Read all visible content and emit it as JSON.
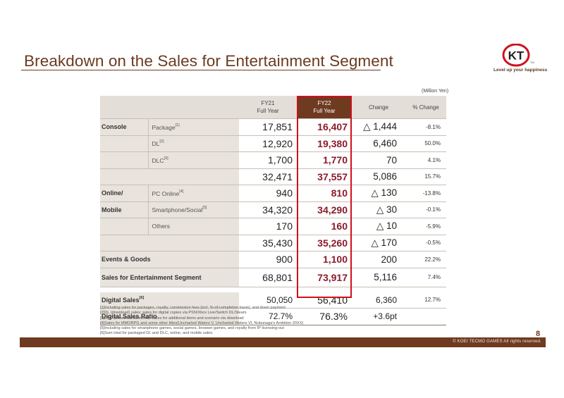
{
  "title": "Breakdown on the Sales for Entertainment Segment",
  "logo": {
    "mark": "KT",
    "tagline": "Level up your happiness",
    "tm": "TM"
  },
  "unit": "(Million Yen)",
  "colors": {
    "brand": "#6e3b21",
    "title": "#6b3a1e",
    "highlight_border": "#d0101c",
    "fy22_text": "#8a1b2a",
    "header_bg": "#e3ded7"
  },
  "table": {
    "headers": {
      "fy21_line1": "FY21",
      "fy21_line2": "Full Year",
      "fy22_line1": "FY22",
      "fy22_line2": "Full Year",
      "change": "Change",
      "pct_change": "% Change"
    },
    "console": {
      "label": "Console",
      "package": {
        "label": "Package",
        "note": "[1]",
        "fy21": "17,851",
        "fy22": "16,407",
        "change": "△ 1,444",
        "pct": "-8.1%"
      },
      "dl": {
        "label": "DL",
        "note": "[2]",
        "fy21": "12,920",
        "fy22": "19,380",
        "change": "6,460",
        "pct": "50.0%"
      },
      "dlc": {
        "label": "DLC",
        "note": "[3]",
        "fy21": "1,700",
        "fy22": "1,770",
        "change": "70",
        "pct": "4.1%"
      },
      "subtotal": {
        "fy21": "32,471",
        "fy22": "37,557",
        "change": "5,086",
        "pct": "15.7%"
      }
    },
    "online": {
      "label1": "Online/",
      "label2": "Mobile",
      "pc": {
        "label": "PC Online",
        "note": "[4]",
        "fy21": "940",
        "fy22": "810",
        "change": "△ 130",
        "pct": "-13.8%"
      },
      "smartphone": {
        "label": "Smartphone/Social",
        "note": "[5]",
        "fy21": "34,320",
        "fy22": "34,290",
        "change": "△ 30",
        "pct": "-0.1%"
      },
      "others": {
        "label": "Others",
        "fy21": "170",
        "fy22": "160",
        "change": "△ 10",
        "pct": "-5.9%"
      },
      "subtotal": {
        "fy21": "35,430",
        "fy22": "35,260",
        "change": "△ 170",
        "pct": "-0.5%"
      }
    },
    "events": {
      "label": "Events & Goods",
      "fy21": "900",
      "fy22": "1,100",
      "change": "200",
      "pct": "22.2%"
    },
    "total": {
      "label": "Sales for Entertainment Segment",
      "fy21": "68,801",
      "fy22": "73,917",
      "change": "5,116",
      "pct": "7.4%"
    },
    "digital_sales": {
      "label": "Digital Sales",
      "note": "[6]",
      "fy21": "50,050",
      "fy22": "56,410",
      "change": "6,360",
      "pct": "12.7%"
    },
    "digital_ratio": {
      "label": "Digital Sales Ratio",
      "fy21": "72.7%",
      "fy22": "76.3%",
      "change": "+3.6pt",
      "pct": ""
    }
  },
  "notes": [
    "[1]Including sales for packages, royalty, commission fees (incl. %-of-completion basis), and down payment",
    "[2]DL (download) sales: sales for digital copies via PSN/Xbox Live/Switch DL/Steam",
    "[3]DLC (Download contents): Sales for additional items and scenario via download",
    "[4]Sales for MMORPG and some other titles(Uncharted Waters V, Uncharted Waters VI, Nobunaga's Ambition 20XX)",
    "[5]Including sales for smartphone games, social games, browser games, and royalty from IP licensing-out",
    "[6]Sum total for packaged DL and DLC, online, and mobile sales."
  ],
  "page_number": "8",
  "copyright": "© KOEI TECMO GAMES All rights reserved."
}
